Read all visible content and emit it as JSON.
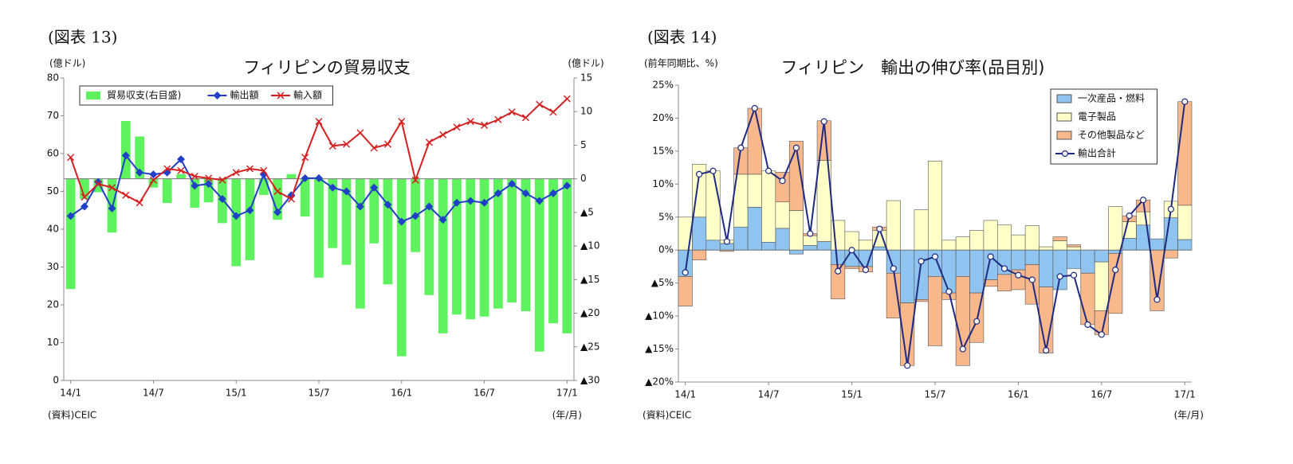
{
  "chart_data": [
    {
      "type": "combo",
      "figure_label": "(図表 13)",
      "title": "フィリピンの貿易収支",
      "ylabel": "(億ドル)",
      "y2label": "(億ドル)",
      "xlabel": "(年/月)",
      "source": "(資料)CEIC",
      "categories": [
        "14/1",
        null,
        null,
        null,
        null,
        null,
        "14/7",
        null,
        null,
        null,
        null,
        null,
        "15/1",
        null,
        null,
        null,
        null,
        null,
        "15/7",
        null,
        null,
        null,
        null,
        null,
        "16/1",
        null,
        null,
        null,
        null,
        null,
        "16/7",
        null,
        null,
        null,
        null,
        null,
        "17/1"
      ],
      "ylim": [
        0,
        80
      ],
      "yticks": [
        0,
        10,
        20,
        30,
        40,
        50,
        60,
        70,
        80
      ],
      "y2lim": [
        -30,
        15
      ],
      "y2ticks": [
        {
          "value": -30,
          "label": "▲30"
        },
        {
          "value": -25,
          "label": "▲25"
        },
        {
          "value": -20,
          "label": "▲20"
        },
        {
          "value": -15,
          "label": "▲15"
        },
        {
          "value": -10,
          "label": "▲10"
        },
        {
          "value": -5,
          "label": "▲5"
        },
        0,
        5,
        10,
        15
      ],
      "legend": "top-left",
      "series": [
        {
          "name": "貿易収支(右目盛)",
          "type": "bar",
          "axis": "y2",
          "color": "#5ef25e",
          "values": [
            -16.4,
            -3,
            -2,
            -8,
            8.6,
            6.3,
            -1.3,
            -3.6,
            0.7,
            -4.3,
            -3.5,
            -6.6,
            -13,
            -12.1,
            -2.4,
            -6.1,
            0.7,
            -5.6,
            -14.7,
            -10.3,
            -12.8,
            -19.3,
            -9.6,
            -15.7,
            -26.4,
            -10.9,
            -17.3,
            -23,
            -20.2,
            -20.9,
            -20.5,
            -19.3,
            -18.4,
            -19.7,
            -25.7,
            -21.5,
            -23
          ]
        },
        {
          "name": "輸出額",
          "type": "line",
          "marker": "diamond",
          "color": "#2040c8",
          "values": [
            43.5,
            46,
            52.5,
            45.5,
            59.5,
            55,
            54.5,
            55,
            58.5,
            51.5,
            52,
            48,
            43.5,
            45,
            54.5,
            44.5,
            49,
            53.5,
            53.5,
            51,
            50,
            46,
            51,
            46.5,
            42,
            43.5,
            46,
            42.5,
            47,
            47.5,
            47,
            49.5,
            52,
            49.5,
            47.5,
            49.5,
            51.5
          ]
        },
        {
          "name": "輸入額",
          "type": "line",
          "marker": "x",
          "color": "#d42020",
          "values": [
            59,
            48.5,
            52,
            51,
            49,
            47,
            53,
            56,
            55.5,
            54,
            53.5,
            53,
            55,
            56,
            55.5,
            50,
            48,
            59,
            68.5,
            62,
            62.5,
            65.5,
            61.5,
            62.5,
            68.5,
            53,
            63,
            65,
            67,
            68.5,
            67.5,
            69,
            71,
            69.5,
            73,
            71,
            74.5
          ]
        }
      ]
    },
    {
      "type": "stacked",
      "figure_label": "(図表 14)",
      "title": "フィリピン　輸出の伸び率(品目別)",
      "ylabel": "(前年同期比、%)",
      "xlabel": "(年/月)",
      "source": "(資料)CEIC",
      "categories": [
        "14/1",
        null,
        null,
        null,
        null,
        null,
        "14/7",
        null,
        null,
        null,
        null,
        null,
        "15/1",
        null,
        null,
        null,
        null,
        null,
        "15/7",
        null,
        null,
        null,
        null,
        null,
        "16/1",
        null,
        null,
        null,
        null,
        null,
        "16/7",
        null,
        null,
        null,
        null,
        null,
        "17/1"
      ],
      "ylim": [
        -20,
        25
      ],
      "yticks": [
        {
          "value": -20,
          "label": "▲20%"
        },
        {
          "value": -15,
          "label": "▲15%"
        },
        {
          "value": -10,
          "label": "▲10%"
        },
        {
          "value": -5,
          "label": "▲5%"
        },
        {
          "value": 0,
          "label": "0%"
        },
        {
          "value": 5,
          "label": "5%"
        },
        {
          "value": 10,
          "label": "10%"
        },
        {
          "value": 15,
          "label": "15%"
        },
        {
          "value": 20,
          "label": "20%"
        },
        {
          "value": 25,
          "label": "25%"
        }
      ],
      "legend": "top-right",
      "series": [
        {
          "name": "一次産品・燃料",
          "type": "bar",
          "color": "#8fc4f0",
          "values": [
            -4,
            5,
            1.5,
            1,
            3.5,
            6.5,
            1.2,
            3.3,
            -0.6,
            0.7,
            1.3,
            -2.2,
            -2.5,
            -2.5,
            0.5,
            -3.5,
            -8,
            -7.5,
            -4,
            -6.5,
            -4,
            -6.5,
            -4.5,
            -3.7,
            -3,
            -2.2,
            -5.6,
            -6,
            -2.8,
            -3.5,
            -1.8,
            -0.5,
            1.8,
            3.8,
            1.7,
            4.9,
            1.6
          ]
        },
        {
          "name": "電子製品",
          "type": "bar",
          "color": "#ffffc8",
          "values": [
            5,
            8,
            10.5,
            0.5,
            8,
            5,
            10.8,
            4,
            6,
            1.5,
            12.3,
            4.5,
            2.8,
            1.5,
            2.5,
            7.5,
            0,
            6.1,
            13.5,
            1.5,
            2,
            3,
            4.5,
            3.8,
            2.3,
            3.7,
            0.5,
            1.4,
            0.5,
            0,
            -7.4,
            6.6,
            2.5,
            2,
            0,
            2.5,
            5.2
          ]
        },
        {
          "name": "その他製品など",
          "type": "bar",
          "color": "#f8b88b",
          "values": [
            -4.5,
            -1.5,
            0,
            -0.2,
            4,
            10,
            0,
            4.5,
            10.5,
            0.3,
            6,
            -5.2,
            -0.3,
            -0.8,
            0.5,
            -6.8,
            -9.5,
            -0.3,
            -10.5,
            -1,
            -13.5,
            -7.5,
            -1,
            -2.5,
            -3,
            -6,
            -10,
            0.6,
            0.3,
            -7.8,
            -3.6,
            -9.1,
            0.9,
            1.8,
            -9.2,
            -1.2,
            15.7
          ]
        },
        {
          "name": "輸出合計",
          "type": "line",
          "marker": "circle",
          "color": "#1f2a80",
          "values": [
            -3.4,
            11.5,
            12,
            1.3,
            15.5,
            21.5,
            12,
            10.5,
            15.5,
            2.5,
            19.5,
            -3.2,
            0,
            -3,
            3.2,
            -2.8,
            -17.5,
            -1.7,
            -1,
            -6.3,
            -15,
            -10.8,
            -1,
            -2.8,
            -3.8,
            -4.5,
            -15.2,
            -4,
            -3.8,
            -11.3,
            -12.8,
            -3,
            5.2,
            7.6,
            -7.5,
            6.2,
            22.5
          ]
        }
      ]
    }
  ]
}
